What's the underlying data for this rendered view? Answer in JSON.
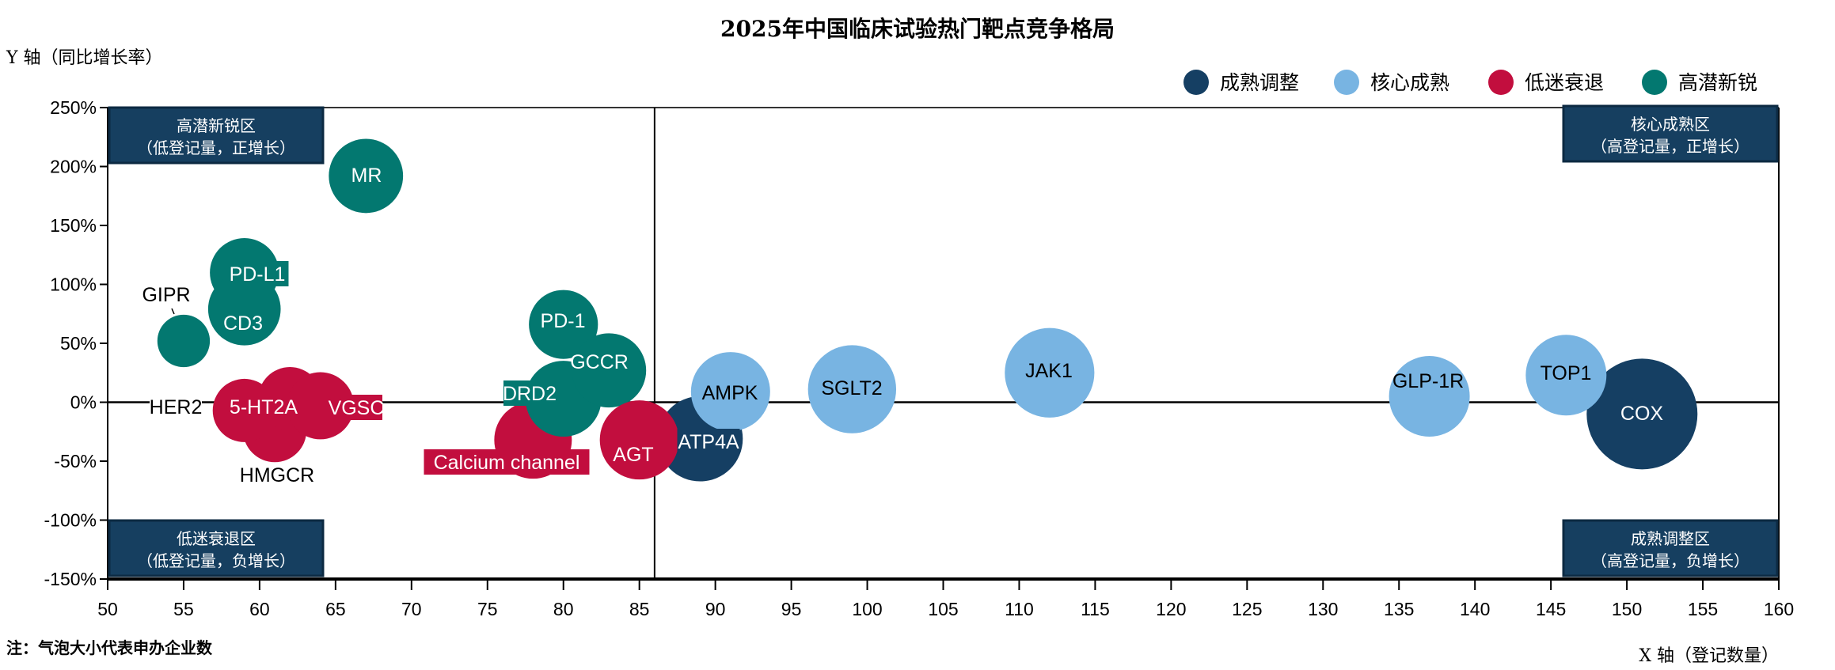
{
  "chart_data": {
    "type": "scatter",
    "variant": "bubble",
    "title": "2025年中国临床试验热门靶点竞争格局",
    "xlabel": "X 轴（登记数量）",
    "ylabel": "Y 轴（同比增长率）",
    "note": "注：气泡大小代表申办企业数",
    "xlim": [
      50,
      160
    ],
    "ylim": [
      -150,
      250
    ],
    "x_ticks": [
      50,
      55,
      60,
      65,
      70,
      75,
      80,
      85,
      90,
      95,
      100,
      105,
      110,
      115,
      120,
      125,
      130,
      135,
      140,
      145,
      150,
      155,
      160
    ],
    "y_ticks": [
      250,
      200,
      150,
      100,
      50,
      0,
      -50,
      -100,
      -150
    ],
    "y_tick_labels": [
      "250%",
      "200%",
      "150%",
      "100%",
      "50%",
      "0%",
      "-50%",
      "-100%",
      "-150%"
    ],
    "x_tick_labels": [
      "50",
      "55",
      "60",
      "65",
      "70",
      "75",
      "80",
      "85",
      "90",
      "95",
      "100",
      "105",
      "110",
      "115",
      "120",
      "125",
      "130",
      "135",
      "140",
      "145",
      "150",
      "155",
      "160"
    ],
    "divider_x": 86,
    "divider_y": 0,
    "grid": false,
    "legend_position": "top-right",
    "legend": [
      {
        "name": "成熟调整",
        "color": "#153f63"
      },
      {
        "name": "核心成熟",
        "color": "#78b4e2"
      },
      {
        "name": "低迷衰退",
        "color": "#c20e3e"
      },
      {
        "name": "高潜新锐",
        "color": "#037870"
      }
    ],
    "quadrants": [
      {
        "position": "top-left",
        "title": "高潜新锐区",
        "subtitle": "（低登记量，正增长）"
      },
      {
        "position": "top-right",
        "title": "核心成熟区",
        "subtitle": "（高登记量，正增长）"
      },
      {
        "position": "bottom-left",
        "title": "低迷衰退区",
        "subtitle": "（低登记量，负增长）"
      },
      {
        "position": "bottom-right",
        "title": "成熟调整区",
        "subtitle": "（高登记量，负增长）"
      }
    ],
    "points": [
      {
        "label": "COX",
        "x": 151,
        "y": -10,
        "size": 49,
        "category": "成熟调整"
      },
      {
        "label": "TOP1",
        "x": 146,
        "y": 23,
        "size": 26,
        "category": "核心成熟"
      },
      {
        "label": "GLP-1R",
        "x": 137,
        "y": 5,
        "size": 26,
        "category": "核心成熟"
      },
      {
        "label": "JAK1",
        "x": 112,
        "y": 25,
        "size": 32,
        "category": "核心成熟"
      },
      {
        "label": "SGLT2",
        "x": 99,
        "y": 11,
        "size": 31,
        "category": "核心成熟"
      },
      {
        "label": "ATP4A",
        "x": 89,
        "y": -31,
        "size": 29,
        "category": "成熟调整"
      },
      {
        "label": "AMPK",
        "x": 91,
        "y": 9,
        "size": 25,
        "category": "核心成熟"
      },
      {
        "label": "PD-1",
        "x": 80,
        "y": 66,
        "size": 19,
        "category": "高潜新锐"
      },
      {
        "label": "Calcium channel",
        "x": 78,
        "y": -32,
        "size": 24,
        "category": "低迷衰退"
      },
      {
        "label": "DRD2",
        "x": 80,
        "y": 3,
        "size": 23,
        "category": "高潜新锐"
      },
      {
        "label": "GCCR",
        "x": 83,
        "y": 27,
        "size": 22,
        "category": "高潜新锐"
      },
      {
        "label": "AGT",
        "x": 85,
        "y": -32,
        "size": 25,
        "category": "低迷衰退"
      },
      {
        "label": "HMGCR",
        "x": 61,
        "y": -24,
        "size": 16,
        "category": "低迷衰退"
      },
      {
        "label": "HER2",
        "x": 62,
        "y": 3,
        "size": 16,
        "category": "低迷衰退"
      },
      {
        "label": "VGSC",
        "x": 64,
        "y": -3,
        "size": 18,
        "category": "低迷衰退"
      },
      {
        "label": "5-HT2A",
        "x": 59,
        "y": -7,
        "size": 16,
        "category": "低迷衰退"
      },
      {
        "label": "GIPR",
        "x": 55,
        "y": 52,
        "size": 11,
        "category": "高潜新锐"
      },
      {
        "label": "PD-L1",
        "x": 59,
        "y": 110,
        "size": 19,
        "category": "高潜新锐"
      },
      {
        "label": "CD3",
        "x": 59,
        "y": 79,
        "size": 21,
        "category": "高潜新锐"
      },
      {
        "label": "MR",
        "x": 67,
        "y": 192,
        "size": 22,
        "category": "高潜新锐"
      }
    ]
  }
}
